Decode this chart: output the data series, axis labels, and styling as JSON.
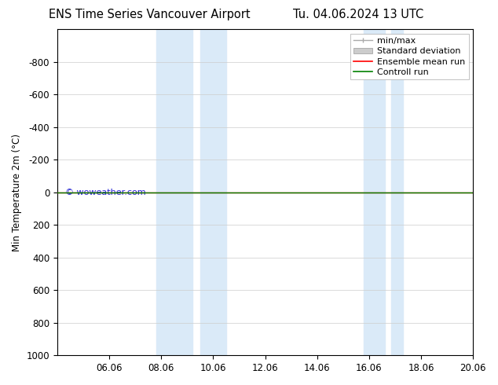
{
  "title_left": "ENS Time Series Vancouver Airport",
  "title_right": "Tu. 04.06.2024 13 UTC",
  "ylabel": "Min Temperature 2m (°C)",
  "watermark": "© woweather.com",
  "x_ticks": [
    "06.06",
    "08.06",
    "10.06",
    "12.06",
    "14.06",
    "16.06",
    "18.06",
    "20.06"
  ],
  "x_tick_values": [
    2,
    4,
    6,
    8,
    10,
    12,
    14,
    16
  ],
  "x_min": 0,
  "x_max": 16,
  "ylim_bottom": 1000,
  "ylim_top": -1000,
  "y_ticks": [
    -800,
    -600,
    -400,
    -200,
    0,
    200,
    400,
    600,
    800,
    1000
  ],
  "line_color_ensemble": "#ff0000",
  "line_color_control": "#008000",
  "blue_bands": [
    [
      3.8,
      5.2
    ],
    [
      5.5,
      6.5
    ],
    [
      11.8,
      12.6
    ],
    [
      12.85,
      13.3
    ]
  ],
  "shaded_color": "#daeaf8",
  "bg_color": "#ffffff",
  "grid_color": "#cccccc",
  "font_size_title": 10.5,
  "font_size_axis": 8.5,
  "font_size_legend": 8,
  "font_size_watermark": 8,
  "legend_min_max_color": "#aaaaaa",
  "legend_std_color": "#cccccc",
  "watermark_color": "#0000cc"
}
